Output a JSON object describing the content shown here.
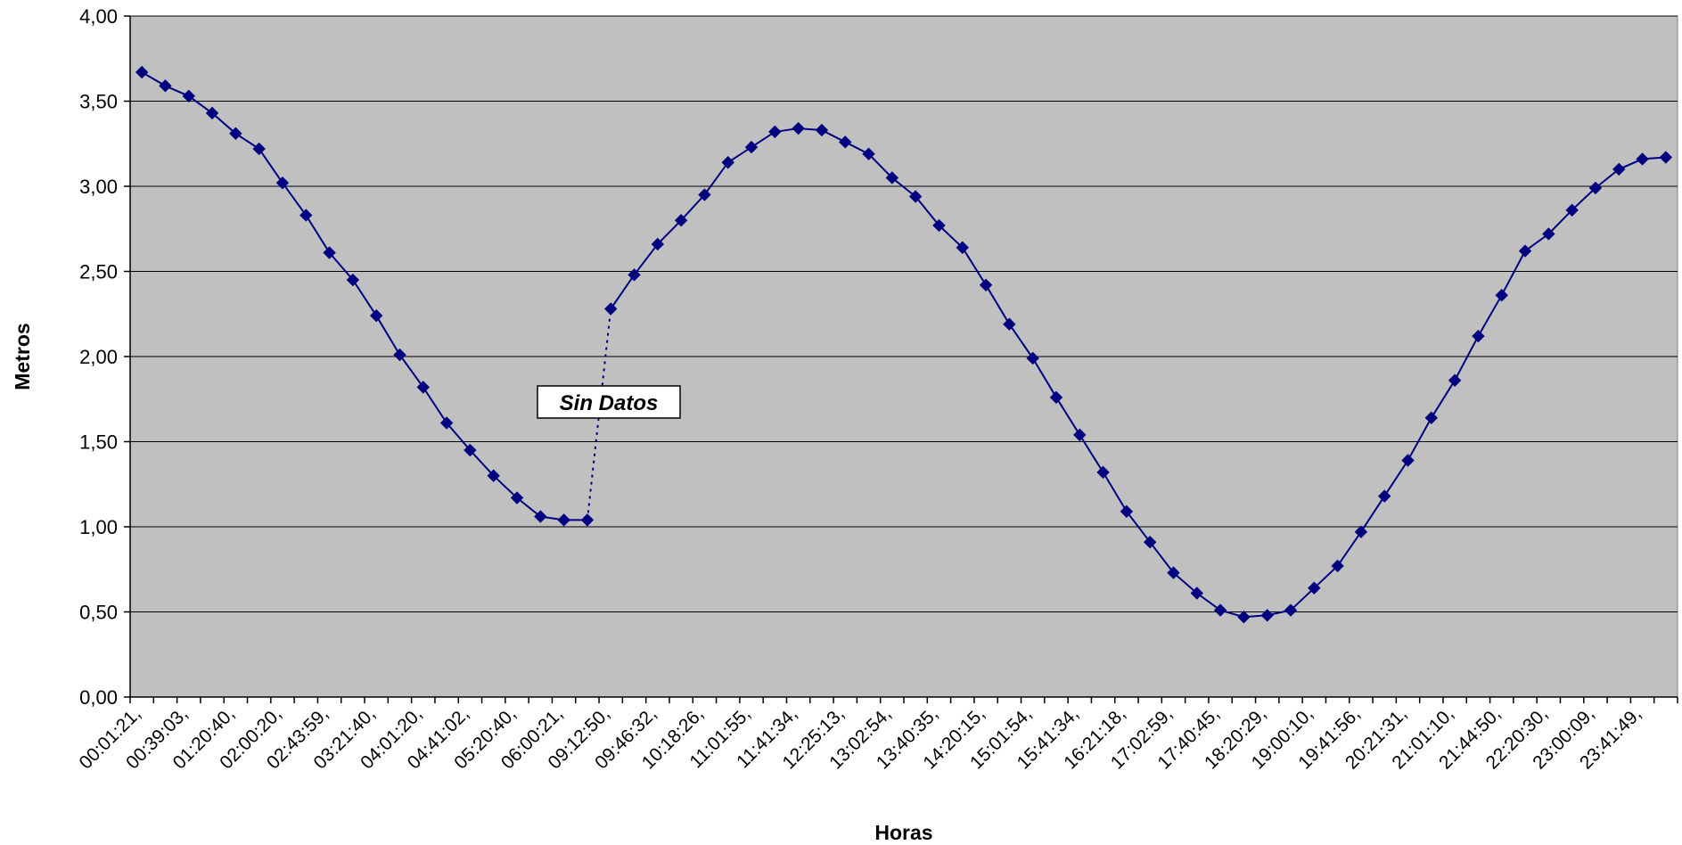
{
  "chart_data": {
    "type": "line",
    "xlabel": "Horas",
    "ylabel": "Metros",
    "ylim": [
      0,
      4
    ],
    "yticks": [
      "0,00",
      "0,50",
      "1,00",
      "1,50",
      "2,00",
      "2,50",
      "3,00",
      "3,50",
      "4,00"
    ],
    "grid": "horizontal",
    "plot_background": "#c0c0c0",
    "series_color": "#000080",
    "gap_after_index": 19,
    "annotation": "Sin Datos",
    "x_tick_labels": [
      "00:01:21,",
      "00:39:03,",
      "01:20:40,",
      "02:00:20,",
      "02:43:59,",
      "03:21:40,",
      "04:01:20,",
      "04:41:02,",
      "05:20:40,",
      "06:00:21,",
      "09:12:50,",
      "09:46:32,",
      "10:18:26,",
      "11:01:55,",
      "11:41:34,",
      "12:25:13,",
      "13:02:54,",
      "13:40:35,",
      "14:20:15,",
      "15:01:54,",
      "15:41:34,",
      "16:21:18,",
      "17:02:59,",
      "17:40:45,",
      "18:20:29,",
      "19:00:10,",
      "19:41:56,",
      "20:21:31,",
      "21:01:10,",
      "21:44:50,",
      "22:20:30,",
      "23:00:09,",
      "23:41:49,"
    ],
    "values": [
      3.67,
      3.59,
      3.53,
      3.43,
      3.31,
      3.22,
      3.02,
      2.83,
      2.61,
      2.45,
      2.24,
      2.01,
      1.82,
      1.61,
      1.45,
      1.3,
      1.17,
      1.06,
      1.04,
      1.04,
      2.28,
      2.48,
      2.66,
      2.8,
      2.95,
      3.14,
      3.23,
      3.32,
      3.34,
      3.33,
      3.26,
      3.19,
      3.05,
      2.94,
      2.77,
      2.64,
      2.42,
      2.19,
      1.99,
      1.76,
      1.54,
      1.32,
      1.09,
      0.91,
      0.73,
      0.61,
      0.51,
      0.47,
      0.48,
      0.51,
      0.64,
      0.77,
      0.97,
      1.18,
      1.39,
      1.64,
      1.86,
      2.12,
      2.36,
      2.62,
      2.72,
      2.86,
      2.99,
      3.1,
      3.16,
      3.17
    ]
  }
}
